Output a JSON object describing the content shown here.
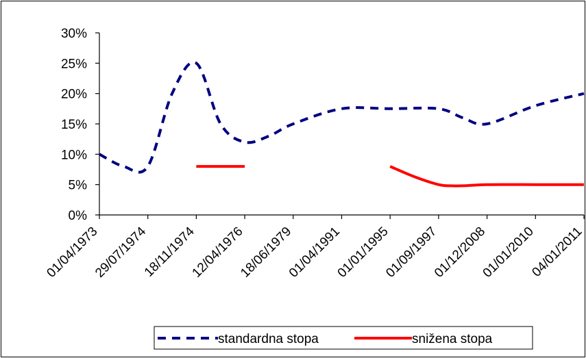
{
  "chart_data": {
    "type": "line",
    "categories": [
      "01/04/1973",
      "29/07/1974",
      "18/11/1974",
      "12/04/1976",
      "18/06/1979",
      "01/04/1991",
      "01/01/1995",
      "01/09/1997",
      "01/12/2008",
      "01/01/2010",
      "04/01/2011"
    ],
    "ylim": [
      0,
      0.3
    ],
    "yticks": [
      "0%",
      "5%",
      "10%",
      "15%",
      "20%",
      "25%",
      "30%"
    ],
    "series": [
      {
        "name": "standardna stopa",
        "color": "#000080",
        "style": "dashed",
        "points": [
          [
            0,
            0.1
          ],
          [
            0.5,
            0.08
          ],
          [
            1,
            0.08
          ],
          [
            1.5,
            0.2
          ],
          [
            2,
            0.25
          ],
          [
            2.5,
            0.15
          ],
          [
            3,
            0.12
          ],
          [
            3.5,
            0.13
          ],
          [
            4,
            0.15
          ],
          [
            5,
            0.175
          ],
          [
            6,
            0.175
          ],
          [
            7,
            0.175
          ],
          [
            7.5,
            0.16
          ],
          [
            8,
            0.15
          ],
          [
            9,
            0.18
          ],
          [
            10,
            0.2
          ]
        ]
      },
      {
        "name": "snižena stopa",
        "color": "#ff0000",
        "style": "solid",
        "segments": [
          [
            [
              2,
              0.08
            ],
            [
              3,
              0.08
            ]
          ],
          [
            [
              6,
              0.08
            ],
            [
              6.5,
              0.063
            ],
            [
              7,
              0.05
            ],
            [
              7.25,
              0.048
            ],
            [
              7.5,
              0.048
            ],
            [
              8,
              0.05
            ],
            [
              9,
              0.05
            ],
            [
              10,
              0.05
            ]
          ]
        ]
      }
    ],
    "legend": {
      "position": "bottom",
      "entries": [
        "standardna stopa",
        "snižena stopa"
      ]
    },
    "grid": false
  }
}
